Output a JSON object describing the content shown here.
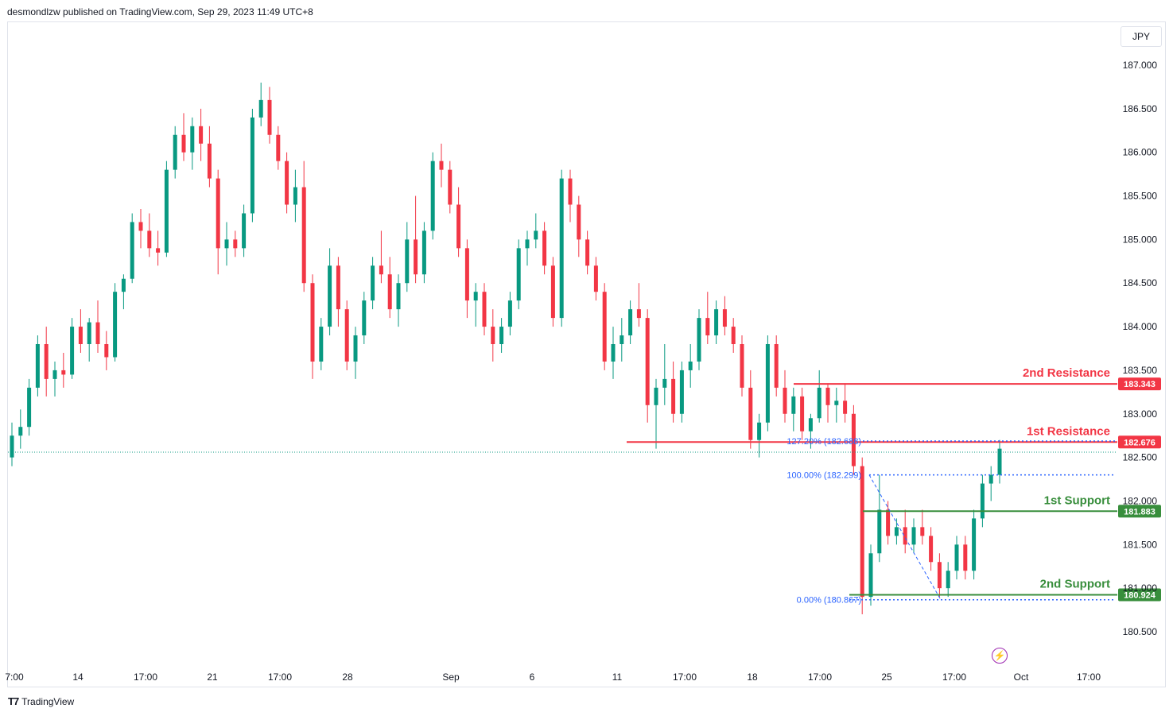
{
  "header": {
    "published_text": "desmondlzw published on TradingView.com, Sep 29, 2023 11:49 UTC+8"
  },
  "currency_label": "JPY",
  "footer": {
    "brand_text": "TradingView"
  },
  "colors": {
    "bull": "#089981",
    "bear": "#f23645",
    "resistance": "#f23645",
    "support": "#388e3c",
    "fib": "#2962ff"
  },
  "chart_data": {
    "type": "candlestick",
    "symbol_currency": "JPY",
    "y_axis": {
      "range": [
        180.3,
        187.3
      ],
      "ticks": [
        "187.000",
        "186.500",
        "186.000",
        "185.500",
        "185.000",
        "184.500",
        "184.000",
        "183.500",
        "183.000",
        "182.500",
        "182.000",
        "181.500",
        "181.000",
        "180.500"
      ]
    },
    "x_axis": {
      "ticks": [
        "7:00",
        "14",
        "17:00",
        "21",
        "17:00",
        "28",
        "Sep",
        "6",
        "11",
        "17:00",
        "18",
        "17:00",
        "25",
        "17:00",
        "Oct",
        "17:00"
      ]
    },
    "levels": [
      {
        "label": "2nd Resistance",
        "value": 183.343,
        "value_label": "183.343",
        "kind": "resistance"
      },
      {
        "label": "1st Resistance",
        "value": 182.676,
        "value_label": "182.676",
        "kind": "resistance"
      },
      {
        "label": "1st Support",
        "value": 181.883,
        "value_label": "181.883",
        "kind": "support"
      },
      {
        "label": "2nd Support",
        "value": 180.924,
        "value_label": "180.924",
        "kind": "support"
      }
    ],
    "fibonacci": [
      {
        "label": "127.20% (182.688)",
        "value": 182.688
      },
      {
        "label": "100.00% (182.299)",
        "value": 182.299
      },
      {
        "label": "0.00% (180.867)",
        "value": 180.867
      }
    ],
    "last_price": 182.56,
    "candles_ohlc": [
      [
        182.5,
        182.9,
        182.4,
        182.75
      ],
      [
        182.75,
        183.05,
        182.6,
        182.85
      ],
      [
        182.85,
        183.4,
        182.75,
        183.3
      ],
      [
        183.3,
        183.9,
        183.2,
        183.8
      ],
      [
        183.8,
        184.0,
        183.2,
        183.4
      ],
      [
        183.4,
        183.6,
        183.2,
        183.5
      ],
      [
        183.5,
        183.7,
        183.3,
        183.45
      ],
      [
        183.45,
        184.1,
        183.4,
        184.0
      ],
      [
        184.0,
        184.2,
        183.7,
        183.8
      ],
      [
        183.8,
        184.1,
        183.6,
        184.05
      ],
      [
        184.05,
        184.3,
        183.7,
        183.8
      ],
      [
        183.8,
        183.95,
        183.5,
        183.65
      ],
      [
        183.65,
        184.5,
        183.6,
        184.4
      ],
      [
        184.4,
        184.6,
        184.2,
        184.55
      ],
      [
        184.55,
        185.3,
        184.5,
        185.2
      ],
      [
        185.2,
        185.35,
        184.9,
        185.1
      ],
      [
        185.1,
        185.3,
        184.8,
        184.9
      ],
      [
        184.9,
        185.1,
        184.7,
        184.85
      ],
      [
        184.85,
        185.9,
        184.8,
        185.8
      ],
      [
        185.8,
        186.3,
        185.7,
        186.2
      ],
      [
        186.2,
        186.45,
        185.9,
        186.0
      ],
      [
        186.0,
        186.4,
        185.8,
        186.3
      ],
      [
        186.3,
        186.5,
        185.9,
        186.1
      ],
      [
        186.1,
        186.3,
        185.6,
        185.7
      ],
      [
        185.7,
        185.8,
        184.6,
        184.9
      ],
      [
        184.9,
        185.2,
        184.7,
        185.0
      ],
      [
        185.0,
        185.1,
        184.8,
        184.9
      ],
      [
        184.9,
        185.4,
        184.8,
        185.3
      ],
      [
        185.3,
        186.5,
        185.2,
        186.4
      ],
      [
        186.4,
        186.8,
        186.3,
        186.6
      ],
      [
        186.6,
        186.75,
        186.1,
        186.2
      ],
      [
        186.2,
        186.3,
        185.8,
        185.9
      ],
      [
        185.9,
        186.0,
        185.3,
        185.4
      ],
      [
        185.4,
        185.8,
        185.2,
        185.6
      ],
      [
        185.6,
        185.9,
        184.4,
        184.5
      ],
      [
        184.5,
        184.6,
        183.4,
        183.6
      ],
      [
        183.6,
        184.1,
        183.5,
        184.0
      ],
      [
        184.0,
        184.9,
        183.9,
        184.7
      ],
      [
        184.7,
        184.8,
        184.0,
        184.2
      ],
      [
        184.2,
        184.3,
        183.5,
        183.6
      ],
      [
        183.6,
        184.0,
        183.4,
        183.9
      ],
      [
        183.9,
        184.4,
        183.8,
        184.3
      ],
      [
        184.3,
        184.8,
        184.2,
        184.7
      ],
      [
        184.7,
        185.1,
        184.5,
        184.6
      ],
      [
        184.6,
        184.8,
        184.1,
        184.2
      ],
      [
        184.2,
        184.6,
        184.0,
        184.5
      ],
      [
        184.5,
        185.2,
        184.4,
        185.0
      ],
      [
        185.0,
        185.5,
        184.5,
        184.6
      ],
      [
        184.6,
        185.2,
        184.5,
        185.1
      ],
      [
        185.1,
        186.0,
        185.0,
        185.9
      ],
      [
        185.9,
        186.1,
        185.6,
        185.8
      ],
      [
        185.8,
        185.9,
        185.3,
        185.4
      ],
      [
        185.4,
        185.6,
        184.8,
        184.9
      ],
      [
        184.9,
        185.0,
        184.1,
        184.3
      ],
      [
        184.3,
        184.5,
        184.0,
        184.4
      ],
      [
        184.4,
        184.5,
        183.9,
        184.0
      ],
      [
        184.0,
        184.2,
        183.6,
        183.8
      ],
      [
        183.8,
        184.1,
        183.7,
        184.0
      ],
      [
        184.0,
        184.4,
        183.9,
        184.3
      ],
      [
        184.3,
        185.0,
        184.2,
        184.9
      ],
      [
        184.9,
        185.1,
        184.7,
        185.0
      ],
      [
        185.0,
        185.3,
        184.9,
        185.1
      ],
      [
        185.1,
        185.2,
        184.6,
        184.7
      ],
      [
        184.7,
        184.8,
        184.0,
        184.1
      ],
      [
        184.1,
        185.8,
        184.0,
        185.7
      ],
      [
        185.7,
        185.8,
        185.2,
        185.4
      ],
      [
        185.4,
        185.5,
        184.8,
        185.0
      ],
      [
        185.0,
        185.1,
        184.6,
        184.7
      ],
      [
        184.7,
        184.8,
        184.3,
        184.4
      ],
      [
        184.4,
        184.5,
        183.5,
        183.6
      ],
      [
        183.6,
        184.0,
        183.4,
        183.8
      ],
      [
        183.8,
        184.1,
        183.6,
        183.9
      ],
      [
        183.9,
        184.3,
        183.8,
        184.2
      ],
      [
        184.2,
        184.5,
        184.0,
        184.1
      ],
      [
        184.1,
        184.2,
        182.9,
        183.1
      ],
      [
        183.1,
        183.4,
        182.6,
        183.3
      ],
      [
        183.3,
        183.8,
        183.1,
        183.4
      ],
      [
        183.4,
        183.6,
        182.9,
        183.0
      ],
      [
        183.0,
        183.6,
        182.9,
        183.5
      ],
      [
        183.5,
        183.8,
        183.3,
        183.6
      ],
      [
        183.6,
        184.2,
        183.5,
        184.1
      ],
      [
        184.1,
        184.4,
        183.8,
        183.9
      ],
      [
        183.9,
        184.3,
        183.8,
        184.2
      ],
      [
        184.2,
        184.35,
        183.9,
        184.0
      ],
      [
        184.0,
        184.1,
        183.7,
        183.8
      ],
      [
        183.8,
        183.9,
        183.2,
        183.3
      ],
      [
        183.3,
        183.5,
        182.6,
        182.7
      ],
      [
        182.7,
        183.0,
        182.5,
        182.9
      ],
      [
        182.9,
        183.9,
        182.8,
        183.8
      ],
      [
        183.8,
        183.9,
        183.2,
        183.3
      ],
      [
        183.3,
        183.5,
        182.9,
        183.0
      ],
      [
        183.0,
        183.3,
        182.8,
        183.2
      ],
      [
        183.2,
        183.3,
        182.7,
        182.8
      ],
      [
        182.8,
        183.0,
        182.6,
        182.95
      ],
      [
        182.95,
        183.5,
        182.9,
        183.3
      ],
      [
        183.3,
        183.35,
        182.9,
        183.1
      ],
      [
        183.1,
        183.3,
        182.9,
        183.15
      ],
      [
        183.15,
        183.35,
        182.9,
        183.0
      ],
      [
        183.0,
        183.1,
        182.3,
        182.4
      ],
      [
        182.4,
        182.5,
        180.7,
        180.9
      ],
      [
        180.9,
        181.5,
        180.8,
        181.4
      ],
      [
        181.4,
        182.3,
        181.3,
        181.9
      ],
      [
        181.9,
        182.0,
        181.5,
        181.6
      ],
      [
        181.6,
        181.8,
        181.5,
        181.7
      ],
      [
        181.7,
        181.9,
        181.4,
        181.5
      ],
      [
        181.5,
        181.8,
        181.4,
        181.7
      ],
      [
        181.7,
        181.9,
        181.5,
        181.6
      ],
      [
        181.6,
        181.7,
        181.2,
        181.3
      ],
      [
        181.3,
        181.4,
        180.9,
        181.0
      ],
      [
        181.0,
        181.3,
        180.9,
        181.2
      ],
      [
        181.2,
        181.6,
        181.1,
        181.5
      ],
      [
        181.5,
        181.6,
        181.1,
        181.2
      ],
      [
        181.2,
        181.9,
        181.1,
        181.8
      ],
      [
        181.8,
        182.3,
        181.7,
        182.2
      ],
      [
        182.2,
        182.4,
        182.0,
        182.3
      ],
      [
        182.3,
        182.7,
        182.2,
        182.6
      ]
    ]
  }
}
